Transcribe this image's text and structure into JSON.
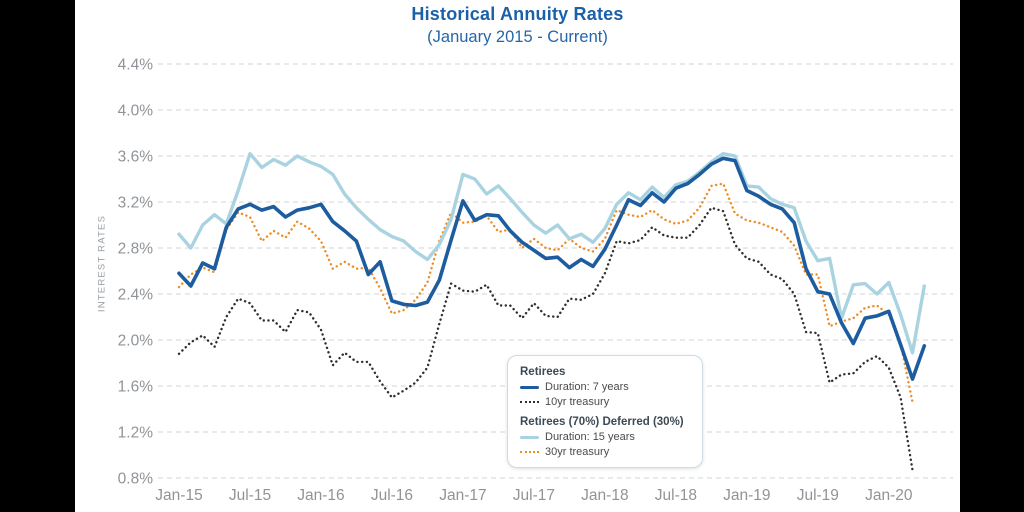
{
  "page": {
    "background": "#000000",
    "panel_background": "#ffffff"
  },
  "header": {
    "title": "Historical Annuity Rates",
    "subtitle": "(January 2015 - Current)",
    "title_color": "#1c60a8"
  },
  "legend": {
    "groups": [
      {
        "title": "Retirees",
        "items": [
          {
            "label": "Duration: 7 years",
            "style": "solid",
            "color": "#1d5c9e"
          },
          {
            "label": "10yr treasury",
            "style": "dotted",
            "color": "#2f2f2f"
          }
        ]
      },
      {
        "title": "Retirees (70%) Deferred (30%)",
        "items": [
          {
            "label": "Duration: 15 years",
            "style": "solid",
            "color": "#a9d3e1"
          },
          {
            "label": "30yr treasury",
            "style": "dotted",
            "color": "#ee8d26"
          }
        ]
      }
    ]
  },
  "chart_data": {
    "type": "line",
    "title": "Historical Annuity Rates",
    "subtitle": "(January 2015 - Current)",
    "ylabel": "INTEREST RATES",
    "xlabel": "",
    "ylim": [
      0.8,
      4.4
    ],
    "grid": "horizontal-dashed",
    "legend_position": "inside-bottom-center",
    "y_tick_labels": [
      "4.4%",
      "4.0%",
      "3.6%",
      "3.2%",
      "2.8%",
      "2.4%",
      "2.0%",
      "1.6%",
      "1.2%",
      "0.8%"
    ],
    "y_tick_values": [
      4.4,
      4.0,
      3.6,
      3.2,
      2.8,
      2.4,
      2.0,
      1.6,
      1.2,
      0.8
    ],
    "x_tick_labels": [
      "Jan-15",
      "Jul-15",
      "Jan-16",
      "Jul-16",
      "Jan-17",
      "Jul-17",
      "Jan-18",
      "Jul-18",
      "Jan-19",
      "Jul-19",
      "Jan-20"
    ],
    "x_tick_month_indices": [
      0,
      6,
      12,
      18,
      24,
      30,
      36,
      42,
      48,
      54,
      60
    ],
    "x_unit": "month",
    "months_total": 64,
    "series": [
      {
        "id": "30yr-treasury",
        "name": "30yr treasury",
        "group": "Retirees (70%) Deferred (30%)",
        "style": "dotted",
        "color": "#ee8d26",
        "width": 2.4,
        "values": [
          2.46,
          2.57,
          2.63,
          2.59,
          2.96,
          3.11,
          3.07,
          2.86,
          2.95,
          2.89,
          3.03,
          2.97,
          2.86,
          2.62,
          2.68,
          2.62,
          2.63,
          2.45,
          2.23,
          2.26,
          2.35,
          2.5,
          2.86,
          3.11,
          3.02,
          3.03,
          3.08,
          2.94,
          2.96,
          2.8,
          2.88,
          2.8,
          2.78,
          2.88,
          2.8,
          2.77,
          2.88,
          3.13,
          3.09,
          3.07,
          3.13,
          3.05,
          3.01,
          3.04,
          3.15,
          3.34,
          3.36,
          3.1,
          3.04,
          3.02,
          2.98,
          2.94,
          2.82,
          2.57,
          2.57,
          2.12,
          2.16,
          2.19,
          2.28,
          2.3,
          2.22,
          1.97,
          1.46,
          null
        ]
      },
      {
        "id": "10yr-treasury",
        "name": "10yr treasury",
        "group": "Retirees",
        "style": "dotted",
        "color": "#2f2f2f",
        "width": 2.4,
        "values": [
          1.88,
          1.98,
          2.04,
          1.94,
          2.2,
          2.36,
          2.32,
          2.17,
          2.17,
          2.07,
          2.26,
          2.24,
          2.09,
          1.78,
          1.89,
          1.81,
          1.81,
          1.64,
          1.5,
          1.56,
          1.63,
          1.76,
          2.14,
          2.49,
          2.43,
          2.42,
          2.48,
          2.3,
          2.3,
          2.19,
          2.32,
          2.21,
          2.2,
          2.36,
          2.35,
          2.4,
          2.58,
          2.86,
          2.84,
          2.87,
          2.98,
          2.91,
          2.89,
          2.89,
          3.0,
          3.15,
          3.12,
          2.83,
          2.71,
          2.68,
          2.57,
          2.53,
          2.4,
          2.07,
          2.06,
          1.63,
          1.7,
          1.71,
          1.81,
          1.86,
          1.76,
          1.5,
          0.87,
          null
        ]
      },
      {
        "id": "duration-15-years",
        "name": "Duration: 15 years",
        "group": "Retirees (70%) Deferred (30%)",
        "style": "solid",
        "color": "#a9d3e1",
        "width": 3.4,
        "values": [
          2.92,
          2.8,
          3.0,
          3.09,
          3.01,
          3.3,
          3.62,
          3.5,
          3.57,
          3.52,
          3.6,
          3.55,
          3.51,
          3.44,
          3.27,
          3.15,
          3.05,
          2.96,
          2.9,
          2.86,
          2.77,
          2.7,
          2.83,
          3.05,
          3.44,
          3.4,
          3.27,
          3.34,
          3.23,
          3.11,
          3.0,
          2.93,
          3.0,
          2.88,
          2.92,
          2.85,
          2.97,
          3.18,
          3.28,
          3.22,
          3.33,
          3.24,
          3.35,
          3.38,
          3.46,
          3.55,
          3.62,
          3.6,
          3.34,
          3.33,
          3.23,
          3.18,
          3.15,
          2.86,
          2.69,
          2.71,
          2.19,
          2.48,
          2.49,
          2.4,
          2.5,
          2.22,
          1.89,
          2.47
        ]
      },
      {
        "id": "duration-7-years",
        "name": "Duration: 7 years",
        "group": "Retirees",
        "style": "solid",
        "color": "#1d5c9e",
        "width": 3.6,
        "values": [
          2.58,
          2.47,
          2.67,
          2.62,
          2.98,
          3.14,
          3.18,
          3.13,
          3.16,
          3.07,
          3.13,
          3.15,
          3.18,
          3.03,
          2.95,
          2.86,
          2.57,
          2.68,
          2.34,
          2.31,
          2.3,
          2.33,
          2.52,
          2.87,
          3.21,
          3.04,
          3.09,
          3.08,
          2.95,
          2.85,
          2.78,
          2.71,
          2.72,
          2.63,
          2.7,
          2.64,
          2.79,
          3.0,
          3.22,
          3.17,
          3.28,
          3.2,
          3.32,
          3.36,
          3.44,
          3.53,
          3.58,
          3.56,
          3.3,
          3.25,
          3.18,
          3.14,
          3.02,
          2.62,
          2.42,
          2.4,
          2.15,
          1.97,
          2.19,
          2.21,
          2.25,
          1.96,
          1.66,
          1.95
        ]
      }
    ]
  }
}
